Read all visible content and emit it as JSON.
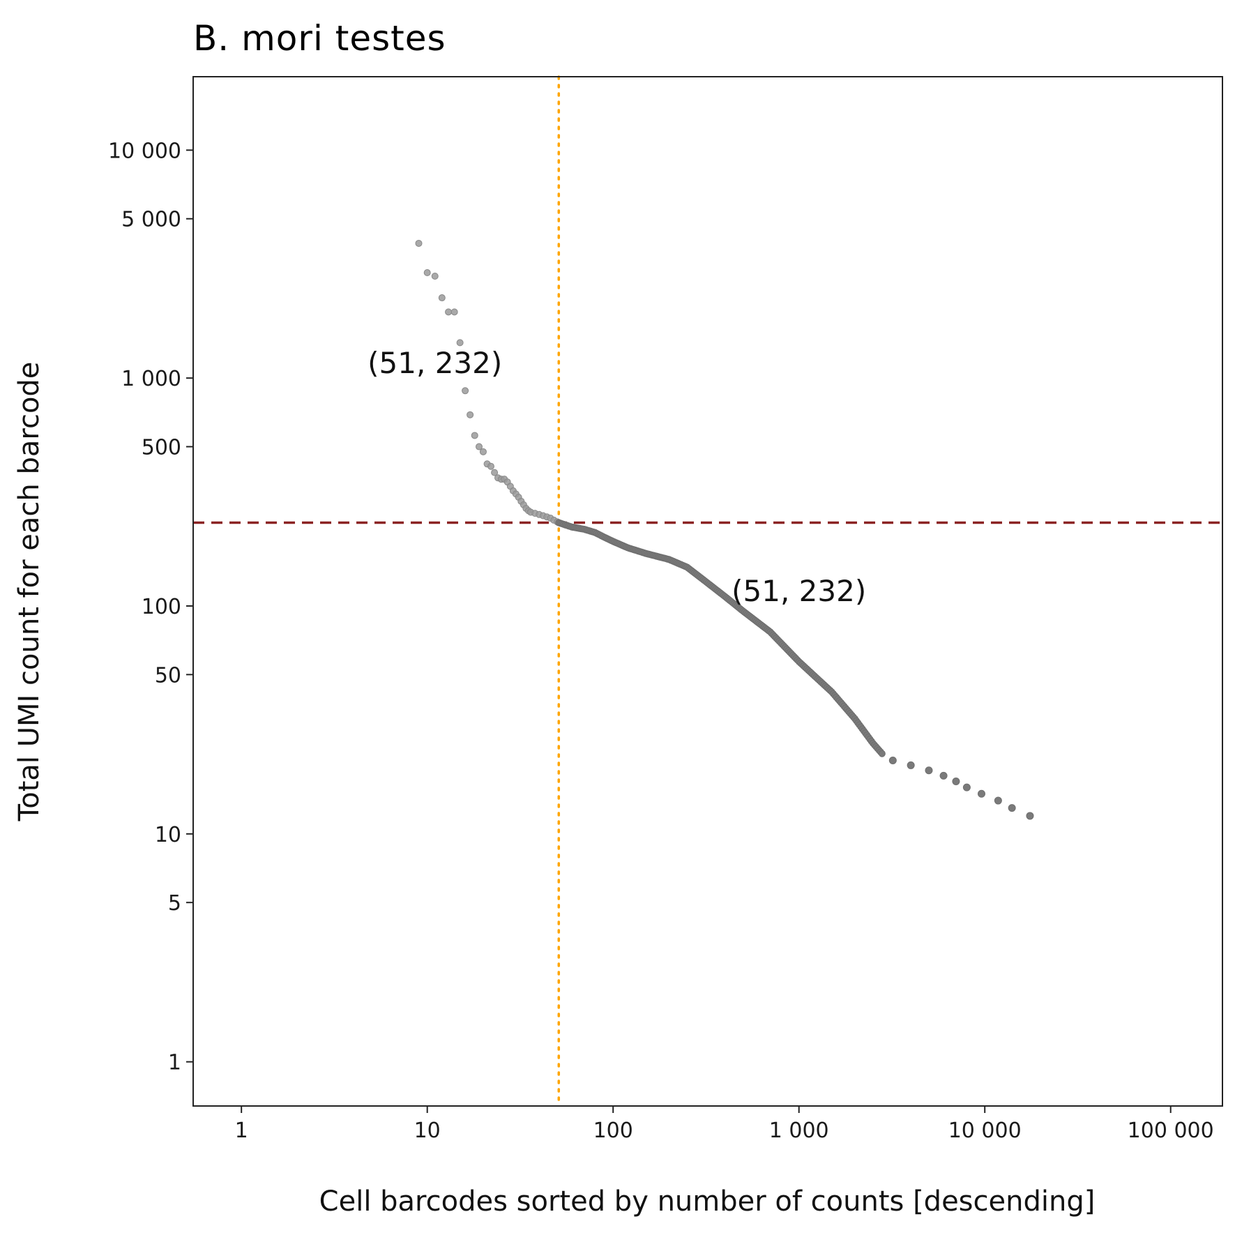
{
  "chart_data": {
    "type": "scatter",
    "title": "B. mori testes",
    "xlabel": "Cell barcodes sorted by number of counts [descending]",
    "ylabel": "Total UMI count for each barcode",
    "x_scale": "log10",
    "y_scale": "log10",
    "xlim": [
      0.55,
      190000
    ],
    "ylim": [
      0.64,
      21000
    ],
    "x_ticks": [
      1,
      10,
      100,
      1000,
      10000,
      100000
    ],
    "x_tick_labels": [
      "1",
      "10",
      "100",
      "1 000",
      "10 000",
      "100 000"
    ],
    "y_ticks": [
      1,
      5,
      10,
      50,
      100,
      500,
      1000,
      5000,
      10000
    ],
    "y_tick_labels": [
      "1",
      "5",
      "10",
      "50",
      "100",
      "500",
      "1 000",
      "5 000",
      "10 000"
    ],
    "grid": false,
    "legend": "none",
    "colors": {
      "points_above": "#9a9a9a",
      "points_below": "#7a7a7a",
      "hline": "#8b2323",
      "vline": "#ffa500",
      "axis": "#222222"
    },
    "hline": {
      "y": 232,
      "style": "dashed"
    },
    "vline": {
      "x": 51,
      "style": "dotted"
    },
    "annotations": [
      {
        "text": "(51, 232)",
        "x": 11,
        "y": 1050
      },
      {
        "text": "(51, 232)",
        "x": 1000,
        "y": 105
      }
    ],
    "points_upper": [
      [
        9,
        3900
      ],
      [
        10,
        2900
      ],
      [
        11,
        2800
      ],
      [
        12,
        2250
      ],
      [
        13,
        1950
      ],
      [
        14,
        1950
      ],
      [
        15,
        1430
      ],
      [
        16,
        880
      ],
      [
        17,
        690
      ],
      [
        18,
        560
      ],
      [
        19,
        500
      ],
      [
        20,
        475
      ],
      [
        21,
        420
      ],
      [
        22,
        410
      ],
      [
        23,
        385
      ],
      [
        24,
        365
      ],
      [
        25,
        360
      ],
      [
        26,
        360
      ],
      [
        27,
        350
      ],
      [
        28,
        335
      ],
      [
        29,
        320
      ],
      [
        30,
        310
      ],
      [
        31,
        300
      ],
      [
        32,
        288
      ],
      [
        33,
        278
      ],
      [
        34,
        268
      ],
      [
        35,
        262
      ],
      [
        36,
        258
      ],
      [
        38,
        255
      ],
      [
        40,
        252
      ],
      [
        42,
        249
      ],
      [
        44,
        246
      ],
      [
        46,
        243
      ],
      [
        48,
        238
      ],
      [
        50,
        234
      ],
      [
        51,
        232
      ]
    ],
    "curve_lower": [
      [
        51,
        232
      ],
      [
        60,
        222
      ],
      [
        70,
        217
      ],
      [
        80,
        210
      ],
      [
        90,
        200
      ],
      [
        100,
        192
      ],
      [
        120,
        180
      ],
      [
        150,
        170
      ],
      [
        200,
        160
      ],
      [
        250,
        148
      ],
      [
        300,
        132
      ],
      [
        400,
        110
      ],
      [
        500,
        95
      ],
      [
        700,
        77
      ],
      [
        1000,
        57
      ],
      [
        1500,
        42
      ],
      [
        2000,
        32
      ],
      [
        2500,
        25
      ],
      [
        2800,
        22.5
      ]
    ],
    "points_tail": [
      [
        3200,
        21
      ],
      [
        4000,
        20
      ],
      [
        5000,
        19
      ],
      [
        6000,
        18
      ],
      [
        7000,
        17
      ],
      [
        8000,
        16
      ],
      [
        9600,
        15
      ],
      [
        11800,
        14
      ],
      [
        14000,
        13
      ],
      [
        17500,
        12
      ]
    ]
  }
}
